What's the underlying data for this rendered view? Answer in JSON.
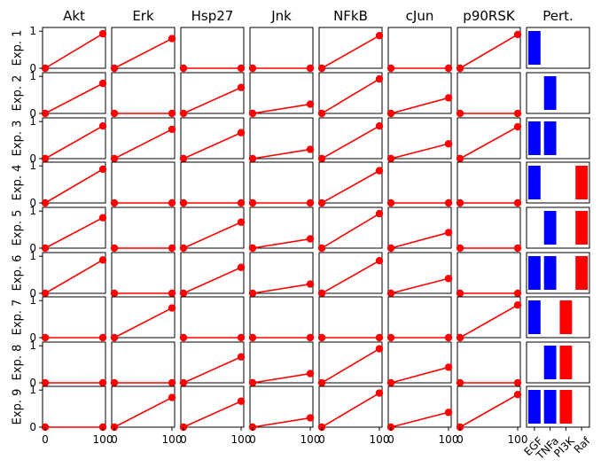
{
  "chart_data": {
    "type": "line",
    "x": [
      0,
      100
    ],
    "xticks": [
      "0",
      "100"
    ],
    "yticks": [
      "0",
      "1"
    ],
    "ylim": [
      0,
      1.1
    ],
    "line_color": "#ff0000",
    "columns": [
      "Akt",
      "Erk",
      "Hsp27",
      "Jnk",
      "NFkB",
      "cJun",
      "p90RSK"
    ],
    "rows": [
      "Exp. 1",
      "Exp. 2",
      "Exp. 3",
      "Exp. 4",
      "Exp. 5",
      "Exp. 6",
      "Exp. 7",
      "Exp. 8",
      "Exp. 9"
    ],
    "end_values": [
      [
        0.93,
        0.8,
        0.0,
        0.0,
        0.88,
        0.0,
        0.91
      ],
      [
        0.81,
        0.0,
        0.7,
        0.25,
        0.93,
        0.42,
        0.0
      ],
      [
        0.88,
        0.79,
        0.7,
        0.25,
        0.88,
        0.4,
        0.86
      ],
      [
        0.91,
        0.0,
        0.0,
        0.0,
        0.87,
        0.0,
        0.0
      ],
      [
        0.82,
        0.0,
        0.7,
        0.25,
        0.93,
        0.42,
        0.0
      ],
      [
        0.9,
        0.0,
        0.7,
        0.25,
        0.88,
        0.4,
        0.0
      ],
      [
        0.0,
        0.8,
        0.0,
        0.0,
        0.0,
        0.0,
        0.88
      ],
      [
        0.0,
        0.0,
        0.7,
        0.25,
        0.92,
        0.42,
        0.0
      ],
      [
        0.0,
        0.8,
        0.7,
        0.25,
        0.92,
        0.4,
        0.88
      ]
    ],
    "perturbation": {
      "title": "Pert.",
      "categories": [
        "EGF",
        "TNFa",
        "PI3K",
        "Raf"
      ],
      "colors": [
        "#0000ff",
        "#0000ff",
        "#ff0000",
        "#ff0000"
      ],
      "matrix": [
        [
          1,
          0,
          0,
          0
        ],
        [
          0,
          1,
          0,
          0
        ],
        [
          1,
          1,
          0,
          0
        ],
        [
          1,
          0,
          0,
          1
        ],
        [
          0,
          1,
          0,
          1
        ],
        [
          1,
          1,
          0,
          1
        ],
        [
          1,
          0,
          1,
          0
        ],
        [
          0,
          1,
          1,
          0
        ],
        [
          1,
          1,
          1,
          0
        ]
      ]
    }
  }
}
